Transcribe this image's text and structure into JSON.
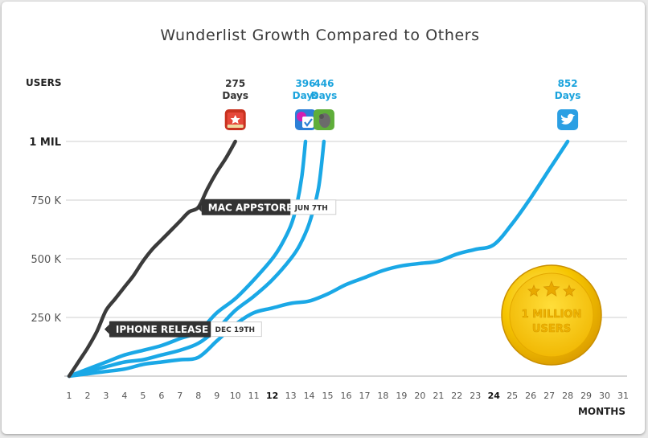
{
  "chart_data": {
    "type": "line",
    "title": "Wunderlist Growth Compared to Others",
    "ylabel": "USERS",
    "xlabel": "MONTHS",
    "yticks": [
      {
        "value": 250000,
        "label": "250 K"
      },
      {
        "value": 500000,
        "label": "500 K"
      },
      {
        "value": 750000,
        "label": "750 K"
      },
      {
        "value": 1000000,
        "label": "1 MIL"
      }
    ],
    "xticks": [
      "1",
      "2",
      "3",
      "4",
      "5",
      "6",
      "7",
      "8",
      "9",
      "10",
      "11",
      "12",
      "13",
      "14",
      "15",
      "16",
      "17",
      "18",
      "19",
      "20",
      "21",
      "22",
      "23",
      "24",
      "25",
      "26",
      "27",
      "28",
      "29",
      "30",
      "31"
    ],
    "bold_xticks": [
      "12",
      "24"
    ],
    "xlim": [
      1,
      31
    ],
    "ylim": [
      0,
      1000000
    ],
    "grid": true,
    "series": [
      {
        "color": "#3b3b3b",
        "milestone_days": "275\nDays",
        "points": [
          [
            1,
            0
          ],
          [
            1.5,
            60000
          ],
          [
            2,
            120000
          ],
          [
            2.5,
            190000
          ],
          [
            3,
            280000
          ],
          [
            3.5,
            330000
          ],
          [
            4,
            380000
          ],
          [
            4.5,
            430000
          ],
          [
            5,
            490000
          ],
          [
            5.5,
            540000
          ],
          [
            6,
            580000
          ],
          [
            6.5,
            620000
          ],
          [
            7,
            660000
          ],
          [
            7.5,
            700000
          ],
          [
            8,
            720000
          ],
          [
            8.5,
            800000
          ],
          [
            9,
            870000
          ],
          [
            9.5,
            930000
          ],
          [
            10,
            1000000
          ]
        ]
      },
      {
        "color": "#1aa8e6",
        "milestone_days": "396\nDays",
        "points": [
          [
            1,
            0
          ],
          [
            2,
            30000
          ],
          [
            3,
            60000
          ],
          [
            4,
            90000
          ],
          [
            5,
            110000
          ],
          [
            6,
            130000
          ],
          [
            7,
            160000
          ],
          [
            8,
            190000
          ],
          [
            9,
            270000
          ],
          [
            10,
            330000
          ],
          [
            11,
            410000
          ],
          [
            12,
            500000
          ],
          [
            12.5,
            560000
          ],
          [
            13,
            640000
          ],
          [
            13.3,
            720000
          ],
          [
            13.6,
            850000
          ],
          [
            13.8,
            1000000
          ]
        ]
      },
      {
        "color": "#1aa8e6",
        "milestone_days": "446\nDays",
        "points": [
          [
            1,
            0
          ],
          [
            2,
            20000
          ],
          [
            3,
            40000
          ],
          [
            4,
            60000
          ],
          [
            5,
            70000
          ],
          [
            6,
            90000
          ],
          [
            7,
            110000
          ],
          [
            8,
            140000
          ],
          [
            9,
            200000
          ],
          [
            10,
            280000
          ],
          [
            11,
            340000
          ],
          [
            12,
            410000
          ],
          [
            13,
            500000
          ],
          [
            13.5,
            560000
          ],
          [
            14,
            650000
          ],
          [
            14.5,
            800000
          ],
          [
            14.8,
            1000000
          ]
        ]
      },
      {
        "color": "#1aa8e6",
        "milestone_days": "852\nDays",
        "points": [
          [
            1,
            0
          ],
          [
            2,
            10000
          ],
          [
            3,
            20000
          ],
          [
            4,
            30000
          ],
          [
            5,
            50000
          ],
          [
            6,
            60000
          ],
          [
            7,
            70000
          ],
          [
            8,
            80000
          ],
          [
            9,
            150000
          ],
          [
            10,
            220000
          ],
          [
            11,
            270000
          ],
          [
            12,
            290000
          ],
          [
            13,
            310000
          ],
          [
            14,
            320000
          ],
          [
            15,
            350000
          ],
          [
            16,
            390000
          ],
          [
            17,
            420000
          ],
          [
            18,
            450000
          ],
          [
            19,
            470000
          ],
          [
            20,
            480000
          ],
          [
            21,
            490000
          ],
          [
            22,
            520000
          ],
          [
            23,
            540000
          ],
          [
            24,
            560000
          ],
          [
            25,
            650000
          ],
          [
            26,
            760000
          ],
          [
            27,
            880000
          ],
          [
            28,
            1000000
          ]
        ]
      }
    ],
    "annotations": [
      {
        "label": "MAC APPSTORE",
        "date": "JUN 7TH",
        "x": 8,
        "y": 720000
      },
      {
        "label": "IPHONE RELEASE",
        "date": "DEC 19TH",
        "x": 3,
        "y": 200000
      }
    ]
  },
  "badge": {
    "line1": "1 MILLION",
    "line2": "USERS",
    "gold": "#f5c400"
  },
  "icons": [
    {
      "series": 0,
      "name": "wunderlist-app-icon"
    },
    {
      "series": 1,
      "name": "foursquare-app-icon"
    },
    {
      "series": 2,
      "name": "evernote-app-icon"
    },
    {
      "series": 3,
      "name": "twitter-app-icon"
    }
  ]
}
